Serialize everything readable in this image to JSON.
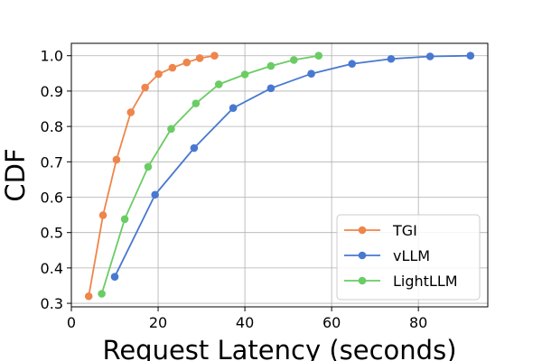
{
  "chart_data": {
    "type": "line",
    "title": "",
    "xlabel": "Request Latency (seconds)",
    "ylabel": "CDF",
    "xlim": [
      0,
      96
    ],
    "ylim": [
      0.29,
      1.035
    ],
    "xticks": [
      0,
      20,
      40,
      60,
      80
    ],
    "yticks": [
      0.3,
      0.4,
      0.5,
      0.6,
      0.7,
      0.8,
      0.9,
      1.0
    ],
    "xtick_labels": [
      "0",
      "20",
      "40",
      "60",
      "80"
    ],
    "ytick_labels": [
      "0.3",
      "0.4",
      "0.5",
      "0.6",
      "0.7",
      "0.8",
      "0.9",
      "1.0"
    ],
    "grid": true,
    "legend_position": "bottom-right",
    "series": [
      {
        "name": "TGI",
        "color": "#ee854a",
        "x": [
          4.0,
          7.3,
          10.4,
          13.7,
          17.0,
          20.1,
          23.3,
          26.6,
          29.6,
          33.0
        ],
        "y": [
          0.32,
          0.549,
          0.706,
          0.84,
          0.91,
          0.948,
          0.966,
          0.981,
          0.993,
          1.0
        ]
      },
      {
        "name": "vLLM",
        "color": "#4878d0",
        "x": [
          10.0,
          19.3,
          28.3,
          37.3,
          46.0,
          55.3,
          64.7,
          73.7,
          82.7,
          92.0
        ],
        "y": [
          0.375,
          0.607,
          0.739,
          0.852,
          0.908,
          0.949,
          0.977,
          0.991,
          0.998,
          1.0
        ]
      },
      {
        "name": "LightLLM",
        "color": "#6acc64",
        "x": [
          7.0,
          12.3,
          17.7,
          23.0,
          28.7,
          34.0,
          40.0,
          46.0,
          51.3,
          57.0
        ],
        "y": [
          0.327,
          0.538,
          0.686,
          0.793,
          0.865,
          0.919,
          0.947,
          0.971,
          0.988,
          1.0
        ]
      }
    ]
  }
}
